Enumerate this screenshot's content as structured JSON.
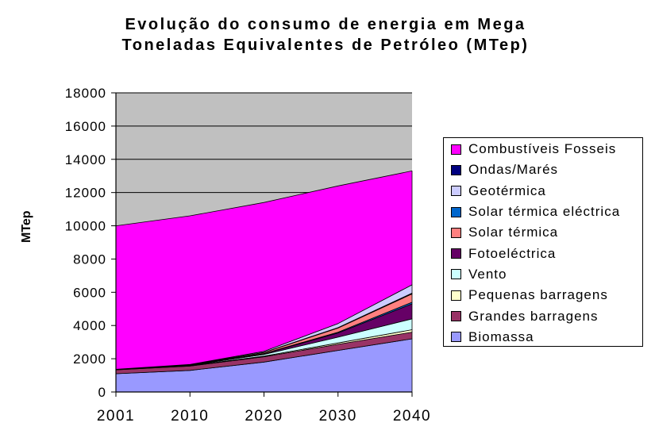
{
  "chart_data": {
    "type": "area",
    "stacked": true,
    "title_lines": [
      "Evolução do consumo de energia em Mega",
      "Toneladas Equivalentes de Petróleo (MTep)"
    ],
    "xlabel": "",
    "ylabel": "MTep",
    "x": [
      "2001",
      "2010",
      "2020",
      "2030",
      "2040"
    ],
    "ylim": [
      0,
      18000
    ],
    "yticks": [
      0,
      2000,
      4000,
      6000,
      8000,
      10000,
      12000,
      14000,
      16000,
      18000
    ],
    "ytick_labels": [
      "0",
      "2000",
      "4000",
      "6000",
      "8000",
      "10000",
      "12000",
      "14000",
      "16000",
      "18000"
    ],
    "grid": true,
    "plot_background": "#c0c0c0",
    "legend_position": "right",
    "series": [
      {
        "name": "Biomassa",
        "color": "#9999ff",
        "values": [
          1100,
          1300,
          1800,
          2500,
          3200
        ]
      },
      {
        "name": "Grandes barragens",
        "color": "#993366",
        "values": [
          230,
          260,
          320,
          370,
          400
        ]
      },
      {
        "name": "Pequenas barragens",
        "color": "#ffffcc",
        "values": [
          15,
          25,
          40,
          80,
          150
        ]
      },
      {
        "name": "Vento",
        "color": "#ccffff",
        "values": [
          5,
          20,
          100,
          350,
          650
        ]
      },
      {
        "name": "Fotoeléctrica",
        "color": "#660066",
        "values": [
          2,
          10,
          40,
          250,
          900
        ]
      },
      {
        "name": "Solar térmica eléctrica",
        "color": "#0066cc",
        "values": [
          1,
          5,
          15,
          50,
          100
        ]
      },
      {
        "name": "Solar térmica",
        "color": "#ff8080",
        "values": [
          5,
          15,
          60,
          250,
          500
        ]
      },
      {
        "name": "Ondas/Marés",
        "color": "#000080",
        "values": [
          1,
          3,
          10,
          20,
          50
        ]
      },
      {
        "name": "Geotérmica",
        "color": "#ccccff",
        "values": [
          8,
          20,
          60,
          250,
          500
        ]
      },
      {
        "name": "Combustíveis Fosseis",
        "color": "#ff00ff",
        "values": [
          8633,
          8942,
          8955,
          8280,
          6850
        ]
      }
    ]
  },
  "legend_order": [
    9,
    7,
    8,
    5,
    6,
    4,
    3,
    2,
    1,
    0
  ]
}
